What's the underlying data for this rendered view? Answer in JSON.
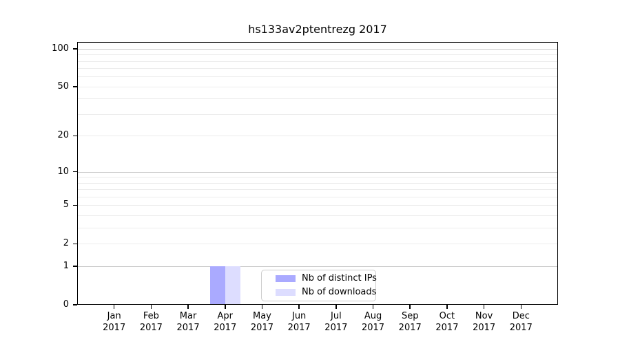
{
  "title": "hs133av2ptentrezg 2017",
  "colors": {
    "distinct_ips_bar": "#aaaaff",
    "downloads_bar": "#ddddff",
    "grid_minor": "#ececec",
    "grid_decade": "#c8c8c8",
    "axis": "#000000",
    "legend_border": "#cdcdcd",
    "background": "#ffffff"
  },
  "chart_data": {
    "type": "bar",
    "title": "hs133av2ptentrezg 2017",
    "categories": [
      "Jan",
      "Feb",
      "Mar",
      "Apr",
      "May",
      "Jun",
      "Jul",
      "Aug",
      "Sep",
      "Oct",
      "Nov",
      "Dec"
    ],
    "x_year_label": "2017",
    "series": [
      {
        "name": "Nb of distinct IPs",
        "color": "#aaaaff",
        "values": [
          0,
          0,
          0,
          1,
          0,
          0,
          0,
          0,
          0,
          0,
          0,
          0
        ]
      },
      {
        "name": "Nb of downloads",
        "color": "#ddddff",
        "values": [
          0,
          0,
          0,
          1,
          0,
          0,
          0,
          0,
          0,
          0,
          0,
          0
        ]
      }
    ],
    "xlabel": "",
    "ylabel": "",
    "yscale": "log1p",
    "ylim": [
      0,
      113
    ],
    "y_major_ticks": [
      0,
      1,
      2,
      5,
      10,
      20,
      50,
      100
    ],
    "y_decade_gridlines": [
      1,
      10,
      100
    ],
    "y_other_gridlines": [
      2,
      3,
      4,
      5,
      6,
      7,
      8,
      9,
      20,
      30,
      40,
      50,
      60,
      70,
      80,
      90
    ],
    "grid": "horizontal",
    "legend_position": "lower center inside"
  },
  "legend": {
    "items": [
      {
        "label": "Nb of distinct IPs"
      },
      {
        "label": "Nb of downloads"
      }
    ]
  }
}
